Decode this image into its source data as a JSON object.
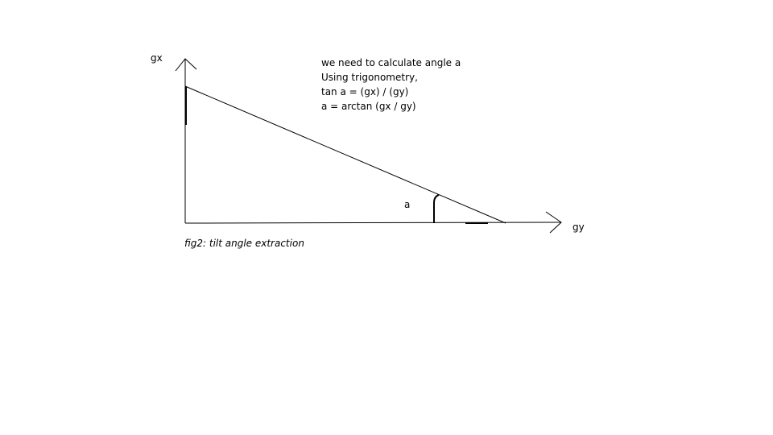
{
  "labels": {
    "axis_vertical": "gx",
    "axis_horizontal": "gy",
    "angle": "a"
  },
  "notes": [
    "we need to calculate angle a",
    "Using trigonometry,",
    "tan a = (gx) / (gy)",
    "a = arctan (gx / gy)"
  ],
  "caption": "fig2: tilt angle extraction",
  "colors": {
    "stroke": "#000000",
    "background": "#ffffff"
  }
}
